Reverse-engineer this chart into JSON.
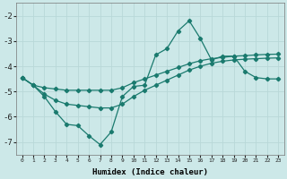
{
  "title": "",
  "xlabel": "Humidex (Indice chaleur)",
  "ylabel": "",
  "bg_color": "#cce8e8",
  "grid_color": "#b8d8d8",
  "line_color": "#1a7a6e",
  "ylim": [
    -7.5,
    -1.5
  ],
  "xlim": [
    -0.5,
    23.5
  ],
  "yticks": [
    -7,
    -6,
    -5,
    -4,
    -3,
    -2
  ],
  "xticks": [
    0,
    1,
    2,
    3,
    4,
    5,
    6,
    7,
    8,
    9,
    10,
    11,
    12,
    13,
    14,
    15,
    16,
    17,
    18,
    19,
    20,
    21,
    22,
    23
  ],
  "series1_x": [
    0,
    1,
    2,
    3,
    4,
    5,
    6,
    7,
    8,
    9,
    10,
    11,
    12,
    13,
    14,
    15,
    16,
    17,
    18,
    19,
    20,
    21,
    22,
    23
  ],
  "series1_y": [
    -4.45,
    -4.75,
    -5.2,
    -5.8,
    -6.3,
    -6.35,
    -6.75,
    -7.1,
    -6.6,
    -5.2,
    -4.8,
    -4.75,
    -3.55,
    -3.3,
    -2.6,
    -2.2,
    -2.9,
    -3.75,
    -3.6,
    -3.6,
    -4.2,
    -4.45,
    -4.5,
    -4.5
  ],
  "series2_x": [
    0,
    1,
    2,
    3,
    4,
    5,
    6,
    7,
    8,
    9,
    10,
    11,
    12,
    13,
    14,
    15,
    16,
    17,
    18,
    19,
    20,
    21,
    22,
    23
  ],
  "series2_y": [
    -4.45,
    -4.75,
    -4.85,
    -4.9,
    -4.95,
    -4.95,
    -4.95,
    -4.95,
    -4.95,
    -4.85,
    -4.65,
    -4.5,
    -4.35,
    -4.2,
    -4.05,
    -3.9,
    -3.78,
    -3.7,
    -3.65,
    -3.6,
    -3.58,
    -3.55,
    -3.53,
    -3.52
  ],
  "series3_x": [
    0,
    1,
    2,
    3,
    4,
    5,
    6,
    7,
    8,
    9,
    10,
    11,
    12,
    13,
    14,
    15,
    16,
    17,
    18,
    19,
    20,
    21,
    22,
    23
  ],
  "series3_y": [
    -4.45,
    -4.75,
    -5.1,
    -5.35,
    -5.5,
    -5.55,
    -5.6,
    -5.65,
    -5.65,
    -5.5,
    -5.2,
    -4.95,
    -4.75,
    -4.55,
    -4.35,
    -4.15,
    -4.0,
    -3.88,
    -3.8,
    -3.75,
    -3.72,
    -3.7,
    -3.68,
    -3.67
  ]
}
